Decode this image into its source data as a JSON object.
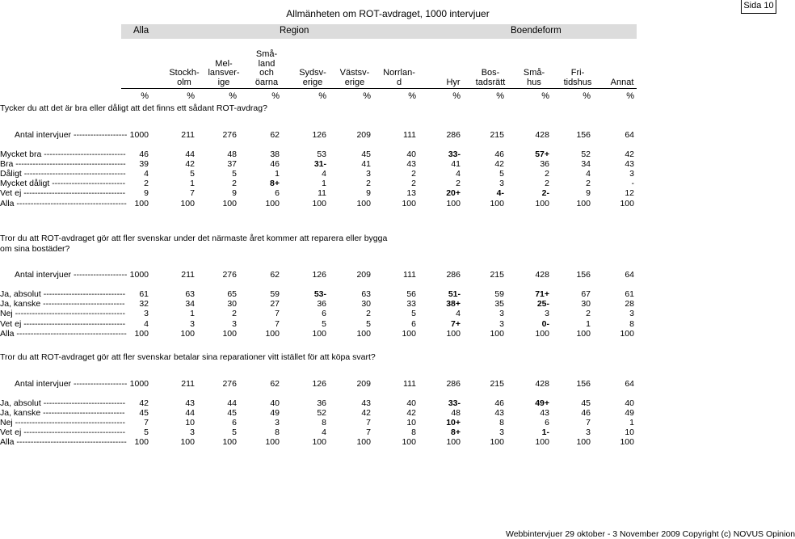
{
  "header": {
    "title": "Allmänheten om ROT-avdraget, 1000 intervjuer",
    "page_label": "Sida 10"
  },
  "bands": {
    "alla": "Alla",
    "region": "Region",
    "boendeform": "Boendeform"
  },
  "columns": [
    "Stockh-\nolm",
    "Mel-\nlansver-\nige",
    "Små-\nland\noch\nöarna",
    "Sydsv-\nerige",
    "Västsv-\nerige",
    "Norrlan-\nd",
    "Hyr",
    "Bos-\ntadsrätt",
    "Små-\nhus",
    "Fri-\ntidshus",
    "Annat"
  ],
  "percent_row": [
    "%",
    "%",
    "%",
    "%",
    "%",
    "%",
    "%",
    "%",
    "%",
    "%",
    "%",
    "%"
  ],
  "sections": [
    {
      "question": "Tycker du att det är bra eller dåligt att det finns ett sådant ROT-avdrag?",
      "n_label": "Antal intervjuer -------------------",
      "n_values": [
        "1000",
        "211",
        "276",
        "62",
        "126",
        "209",
        "111",
        "286",
        "215",
        "428",
        "156",
        "64"
      ],
      "rows": [
        {
          "label": "Mycket bra -----------------------------",
          "values": [
            "46",
            "44",
            "48",
            "38",
            "53",
            "45",
            "40",
            "33-",
            "46",
            "57+",
            "52",
            "42"
          ]
        },
        {
          "label": "Bra ---------------------------------------",
          "values": [
            "39",
            "42",
            "37",
            "46",
            "31-",
            "41",
            "43",
            "41",
            "42",
            "36",
            "34",
            "43"
          ]
        },
        {
          "label": "Dåligt ------------------------------------",
          "values": [
            "4",
            "5",
            "5",
            "1",
            "4",
            "3",
            "2",
            "4",
            "5",
            "2",
            "4",
            "3"
          ]
        },
        {
          "label": "Mycket dåligt --------------------------",
          "values": [
            "2",
            "1",
            "2",
            "8+",
            "1",
            "2",
            "2",
            "2",
            "3",
            "2",
            "2",
            "-"
          ]
        },
        {
          "label": "Vet ej ------------------------------------",
          "values": [
            "9",
            "7",
            "9",
            "6",
            "11",
            "9",
            "13",
            "20+",
            "4-",
            "2-",
            "9",
            "12"
          ]
        },
        {
          "label": "Alla ---------------------------------------",
          "values": [
            "100",
            "100",
            "100",
            "100",
            "100",
            "100",
            "100",
            "100",
            "100",
            "100",
            "100",
            "100"
          ]
        }
      ]
    },
    {
      "question": "Tror du att ROT-avdraget gör att fler svenskar under det närmaste året kommer att reparera eller bygga om sina bostäder?",
      "n_label": "Antal intervjuer -------------------",
      "n_values": [
        "1000",
        "211",
        "276",
        "62",
        "126",
        "209",
        "111",
        "286",
        "215",
        "428",
        "156",
        "64"
      ],
      "rows": [
        {
          "label": "Ja, absolut -----------------------------",
          "values": [
            "61",
            "63",
            "65",
            "59",
            "53-",
            "63",
            "56",
            "51-",
            "59",
            "71+",
            "67",
            "61"
          ]
        },
        {
          "label": "Ja, kanske -----------------------------",
          "values": [
            "32",
            "34",
            "30",
            "27",
            "36",
            "30",
            "33",
            "38+",
            "35",
            "25-",
            "30",
            "28"
          ]
        },
        {
          "label": "Nej ---------------------------------------",
          "values": [
            "3",
            "1",
            "2",
            "7",
            "6",
            "2",
            "5",
            "4",
            "3",
            "3",
            "2",
            "3"
          ]
        },
        {
          "label": "Vet ej ------------------------------------",
          "values": [
            "4",
            "3",
            "3",
            "7",
            "5",
            "5",
            "6",
            "7+",
            "3",
            "0-",
            "1",
            "8"
          ]
        },
        {
          "label": "Alla ---------------------------------------",
          "values": [
            "100",
            "100",
            "100",
            "100",
            "100",
            "100",
            "100",
            "100",
            "100",
            "100",
            "100",
            "100"
          ]
        }
      ]
    },
    {
      "question": "Tror du att ROT-avdraget gör att fler svenskar betalar sina reparationer vitt istället för att köpa svart?",
      "n_label": "Antal intervjuer -------------------",
      "n_values": [
        "1000",
        "211",
        "276",
        "62",
        "126",
        "209",
        "111",
        "286",
        "215",
        "428",
        "156",
        "64"
      ],
      "rows": [
        {
          "label": "Ja, absolut -----------------------------",
          "values": [
            "42",
            "43",
            "44",
            "40",
            "36",
            "43",
            "40",
            "33-",
            "46",
            "49+",
            "45",
            "40"
          ]
        },
        {
          "label": "Ja, kanske -----------------------------",
          "values": [
            "45",
            "44",
            "45",
            "49",
            "52",
            "42",
            "42",
            "48",
            "43",
            "43",
            "46",
            "49"
          ]
        },
        {
          "label": "Nej ---------------------------------------",
          "values": [
            "7",
            "10",
            "6",
            "3",
            "8",
            "7",
            "10",
            "10+",
            "8",
            "6",
            "7",
            "1"
          ]
        },
        {
          "label": "Vet ej ------------------------------------",
          "values": [
            "5",
            "3",
            "5",
            "8",
            "4",
            "7",
            "8",
            "8+",
            "3",
            "1-",
            "3",
            "10"
          ]
        },
        {
          "label": "Alla ---------------------------------------",
          "values": [
            "100",
            "100",
            "100",
            "100",
            "100",
            "100",
            "100",
            "100",
            "100",
            "100",
            "100",
            "100"
          ]
        }
      ]
    }
  ],
  "footer": "Webbintervjuer 29 oktober - 3 November 2009 Copyright (c) NOVUS Opinion"
}
